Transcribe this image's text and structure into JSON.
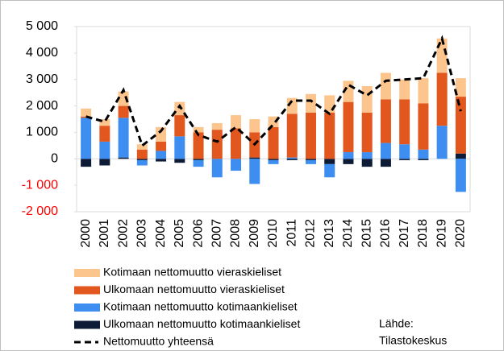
{
  "chart_data": {
    "type": "stacked-bar-line",
    "categories": [
      "2000",
      "2001",
      "2002",
      "2003",
      "2004",
      "2005",
      "2006",
      "2007",
      "2008",
      "2009",
      "2010",
      "2011",
      "2012",
      "2013",
      "2014",
      "2015",
      "2016",
      "2017",
      "2018",
      "2019",
      "2020"
    ],
    "series": [
      {
        "name": "Kotimaan nettomuutto vieraskieliset",
        "color": "#fcc58e",
        "values": [
          300,
          250,
          550,
          200,
          550,
          500,
          200,
          250,
          500,
          500,
          400,
          600,
          700,
          650,
          800,
          1000,
          1000,
          750,
          950,
          1300,
          700
        ]
      },
      {
        "name": "Ulkomaan nettomuutto vieraskieliset",
        "color": "#e2571d",
        "values": [
          50,
          600,
          450,
          350,
          350,
          800,
          1000,
          1100,
          1150,
          950,
          1200,
          1650,
          1750,
          1750,
          1900,
          1500,
          1650,
          1700,
          1750,
          2000,
          2150
        ]
      },
      {
        "name": "Kotimaan nettomuutto kotimaankieliset",
        "color": "#3d8ef0",
        "values": [
          1550,
          650,
          1500,
          -200,
          300,
          850,
          -250,
          -700,
          -450,
          -950,
          -150,
          50,
          -150,
          -500,
          250,
          250,
          600,
          550,
          350,
          1250,
          -1250
        ]
      },
      {
        "name": "Ulkomaan nettomuutto kotimaankieliset",
        "color": "#0d1b36",
        "values": [
          -300,
          -250,
          50,
          -50,
          -100,
          -150,
          -50,
          0,
          0,
          50,
          -50,
          -50,
          -50,
          -200,
          -200,
          -300,
          -300,
          -50,
          -50,
          0,
          200
        ]
      },
      {
        "name": "Nettomuutto yhteensä",
        "color": "#000000",
        "kind": "line",
        "values": [
          1600,
          1400,
          2600,
          500,
          1050,
          2000,
          900,
          650,
          1200,
          550,
          1300,
          2200,
          2200,
          1700,
          2800,
          2400,
          2950,
          3000,
          3050,
          4550,
          1800
        ]
      }
    ],
    "ylim": [
      -2000,
      5000
    ],
    "yticks": [
      {
        "value": -2000,
        "label": "-2 000"
      },
      {
        "value": -1000,
        "label": "-1 000"
      },
      0,
      {
        "value": 1000,
        "label": "1 000"
      },
      {
        "value": 2000,
        "label": "2 000"
      },
      {
        "value": 3000,
        "label": "3 000"
      },
      {
        "value": 4000,
        "label": "4 000"
      },
      {
        "value": 5000,
        "label": "5 000"
      }
    ],
    "negative_tick_color": "#ff0000",
    "source": [
      "Lähde:",
      "Tilastokeskus"
    ]
  }
}
